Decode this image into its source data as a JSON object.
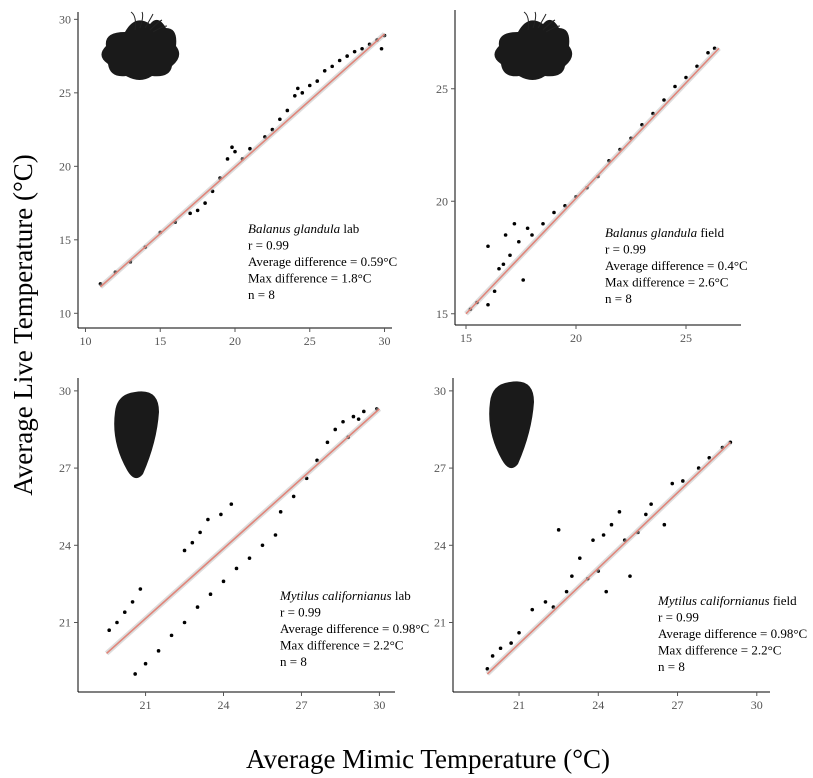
{
  "y_label": "Average Live Temperature (°C)",
  "x_label": "Average Mimic Temperature (°C)",
  "chart_data": [
    {
      "type": "scatter",
      "color": "#000000",
      "x": [
        11,
        12,
        13,
        14,
        15,
        16,
        17,
        18,
        18.5,
        19,
        19.5,
        20,
        20.5,
        21,
        22,
        22.5,
        23,
        23.5,
        24,
        24.5,
        25,
        25.5,
        26,
        26.5,
        27,
        27.5,
        28,
        28.5,
        29,
        29.5,
        30,
        29.8,
        17.5,
        19.8,
        24.2
      ],
      "values": [
        12,
        12.8,
        13.5,
        14.5,
        15.5,
        16.2,
        16.8,
        17.5,
        18.3,
        19.2,
        20.5,
        21,
        20.5,
        21.2,
        22,
        22.5,
        23.2,
        23.8,
        24.8,
        25,
        25.5,
        25.8,
        26.5,
        26.8,
        27.2,
        27.5,
        27.8,
        28,
        28.3,
        28.6,
        28.9,
        28,
        17,
        21.3,
        25.3
      ],
      "fit": {
        "x": [
          11,
          30
        ],
        "values": [
          11.8,
          29
        ],
        "color": "#e0857a"
      },
      "xlim": [
        9.5,
        30.5
      ],
      "ylim": [
        9,
        30.5
      ],
      "xticks": [
        10,
        15,
        20,
        25,
        30
      ],
      "yticks": [
        10,
        15,
        20,
        25,
        30
      ],
      "annotation": {
        "species": "Balanus glandula",
        "setting": "lab",
        "lines": [
          "r = 0.99",
          "Average difference = 0.59°C",
          "Max difference = 1.8°C",
          "n = 8"
        ]
      }
    },
    {
      "type": "scatter",
      "color": "#000000",
      "x": [
        15.2,
        15.5,
        16,
        16.3,
        16.5,
        16.8,
        17,
        17.2,
        17.4,
        17.6,
        17.8,
        16,
        16.7,
        18,
        18.5,
        19,
        19.5,
        20,
        20.5,
        21,
        21.5,
        22,
        22.5,
        23,
        23.5,
        24,
        24.5,
        25,
        25.5,
        26,
        26.3
      ],
      "values": [
        15.2,
        15.5,
        15.4,
        16,
        17,
        18.5,
        17.6,
        19,
        18.2,
        16.5,
        18.8,
        18,
        17.2,
        18.5,
        19,
        19.5,
        19.8,
        20.2,
        20.6,
        21.1,
        21.8,
        22.3,
        22.8,
        23.4,
        23.9,
        24.5,
        25.1,
        25.5,
        26,
        26.6,
        26.8
      ],
      "fit": {
        "x": [
          15,
          26.5
        ],
        "values": [
          15,
          26.8
        ],
        "color": "#e0857a"
      },
      "xlim": [
        14.5,
        27.5
      ],
      "ylim": [
        14.5,
        28.5
      ],
      "xticks": [
        15,
        20,
        25
      ],
      "yticks": [
        15,
        20,
        25
      ],
      "annotation": {
        "species": "Balanus glandula",
        "setting": "field",
        "lines": [
          "r = 0.99",
          "Average difference = 0.4°C",
          "Max difference = 2.6°C",
          "n = 8"
        ]
      }
    },
    {
      "type": "scatter",
      "color": "#000000",
      "x": [
        19.6,
        19.9,
        20.2,
        20.5,
        20.8,
        22.5,
        22.8,
        23.1,
        23.4,
        23.9,
        24.3,
        20.6,
        21,
        21.5,
        22,
        22.5,
        23,
        23.5,
        24,
        24.5,
        25,
        25.5,
        26,
        26.2,
        26.7,
        27.2,
        27.6,
        28,
        28.3,
        28.6,
        29,
        29.4,
        29.9,
        28.8,
        29.2
      ],
      "values": [
        20.7,
        21,
        21.4,
        21.8,
        22.3,
        23.8,
        24.1,
        24.5,
        25,
        25.2,
        25.6,
        19,
        19.4,
        19.9,
        20.5,
        21,
        21.6,
        22.1,
        22.6,
        23.1,
        23.5,
        24,
        24.4,
        25.3,
        25.9,
        26.6,
        27.3,
        28,
        28.5,
        28.8,
        29,
        29.2,
        29.3,
        28.2,
        28.9
      ],
      "fit": {
        "x": [
          19.5,
          30
        ],
        "values": [
          19.8,
          29.3
        ],
        "color": "#e0857a"
      },
      "xlim": [
        18.4,
        30.6
      ],
      "ylim": [
        18.3,
        30.5
      ],
      "xticks": [
        21,
        24,
        27,
        30
      ],
      "yticks": [
        21,
        24,
        27,
        30
      ],
      "annotation": {
        "species": "Mytilus californianus",
        "setting": "lab",
        "lines": [
          "r = 0.99",
          "Average difference = 0.98°C",
          "Max difference = 2.2°C",
          "n = 8"
        ]
      }
    },
    {
      "type": "scatter",
      "color": "#000000",
      "x": [
        19.8,
        20,
        20.3,
        20.7,
        21,
        21.5,
        22,
        22.3,
        22.8,
        23,
        23.3,
        23.6,
        23.8,
        24,
        24.3,
        24.5,
        24.8,
        25,
        25.2,
        25.5,
        25.8,
        26,
        26.5,
        26.8,
        27.2,
        27.8,
        28.2,
        28.7,
        29,
        24.2,
        22.5
      ],
      "values": [
        19.2,
        19.7,
        20,
        20.2,
        20.6,
        21.5,
        21.8,
        21.6,
        22.2,
        22.8,
        23.5,
        22.7,
        24.2,
        23,
        22.2,
        24.8,
        25.3,
        24.2,
        22.8,
        24.5,
        25.2,
        25.6,
        24.8,
        26.4,
        26.5,
        27,
        27.4,
        27.8,
        28,
        24.4,
        24.6
      ],
      "fit": {
        "x": [
          19.8,
          29
        ],
        "values": [
          19,
          28
        ],
        "color": "#e0857a"
      },
      "xlim": [
        18.5,
        30.5
      ],
      "ylim": [
        18.3,
        30.5
      ],
      "xticks": [
        21,
        24,
        27,
        30
      ],
      "yticks": [
        21,
        24,
        27,
        30
      ],
      "annotation": {
        "species": "Mytilus californianus",
        "setting": "field",
        "lines": [
          "r = 0.99",
          "Average difference = 0.98°C",
          "Max difference = 2.2°C",
          "n = 8"
        ]
      }
    }
  ]
}
